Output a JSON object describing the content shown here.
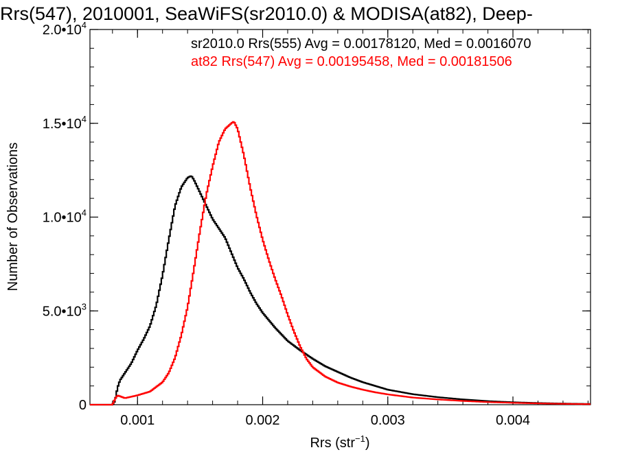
{
  "chart_data": {
    "type": "line",
    "title": "Rrs(547), 2010001, SeaWiFS(sr2010.0) & MODISA(at82), Deep-",
    "xlabel": {
      "base": "Rrs (str",
      "sup": "−1",
      "close": ")"
    },
    "ylabel": "Number of Observations",
    "xlim": [
      0.00062,
      0.00462
    ],
    "ylim": [
      0,
      20000
    ],
    "x_ticks": [
      {
        "value": 0.001,
        "label": "0.001"
      },
      {
        "value": 0.002,
        "label": "0.002"
      },
      {
        "value": 0.003,
        "label": "0.003"
      },
      {
        "value": 0.004,
        "label": "0.004"
      }
    ],
    "y_ticks": [
      {
        "value": 0,
        "mantissa": "0",
        "exp": ""
      },
      {
        "value": 5000,
        "mantissa": "5.0•10",
        "exp": "3"
      },
      {
        "value": 10000,
        "mantissa": "1.0•10",
        "exp": "4"
      },
      {
        "value": 15000,
        "mantissa": "1.5•10",
        "exp": "4"
      },
      {
        "value": 20000,
        "mantissa": "2.0•10",
        "exp": "4"
      }
    ],
    "annotations": [
      {
        "text": "sr2010.0 Rrs(555) Avg = 0.00178120, Med = 0.0016070",
        "color": "#000000"
      },
      {
        "text": "at82 Rrs(547) Avg = 0.00195458, Med = 0.00181506",
        "color": "#ff0000"
      }
    ],
    "series": [
      {
        "color": "#000000",
        "x": [
          0.0006,
          0.0007,
          0.0008,
          0.00082,
          0.00084,
          0.00086,
          0.0009,
          0.00095,
          0.001,
          0.00105,
          0.0011,
          0.00115,
          0.0012,
          0.00125,
          0.0013,
          0.00135,
          0.0014,
          0.00143,
          0.00145,
          0.0015,
          0.00155,
          0.0016,
          0.00165,
          0.0017,
          0.00175,
          0.0018,
          0.00185,
          0.0019,
          0.00195,
          0.002,
          0.0021,
          0.0022,
          0.0023,
          0.0024,
          0.0025,
          0.0026,
          0.0027,
          0.0028,
          0.0029,
          0.003,
          0.0032,
          0.0034,
          0.0036,
          0.0038,
          0.004,
          0.0042,
          0.0044,
          0.0046
        ],
        "y": [
          0,
          0,
          0,
          200,
          900,
          1300,
          1700,
          2200,
          2900,
          3500,
          4200,
          5300,
          6900,
          8800,
          10600,
          11600,
          12100,
          12200,
          12000,
          11300,
          10600,
          9900,
          9400,
          8900,
          8100,
          7300,
          6700,
          6000,
          5400,
          4900,
          4100,
          3400,
          2900,
          2450,
          2050,
          1750,
          1450,
          1200,
          1000,
          800,
          560,
          400,
          280,
          190,
          130,
          90,
          60,
          40
        ]
      },
      {
        "color": "#ff0000",
        "x": [
          0.0006,
          0.0007,
          0.0008,
          0.00082,
          0.00084,
          0.0009,
          0.001,
          0.0011,
          0.0012,
          0.00125,
          0.0013,
          0.00135,
          0.0014,
          0.00145,
          0.0015,
          0.00155,
          0.0016,
          0.00165,
          0.0017,
          0.00175,
          0.00177,
          0.0018,
          0.00185,
          0.0019,
          0.00195,
          0.002,
          0.00205,
          0.0021,
          0.00215,
          0.0022,
          0.00225,
          0.0023,
          0.00235,
          0.0024,
          0.0025,
          0.0026,
          0.0027,
          0.0028,
          0.0029,
          0.003,
          0.0032,
          0.0034,
          0.0036,
          0.0038,
          0.004,
          0.0042,
          0.0044,
          0.0046
        ],
        "y": [
          0,
          0,
          0,
          300,
          500,
          350,
          500,
          700,
          1200,
          1700,
          2500,
          3700,
          5200,
          7200,
          9300,
          11200,
          12700,
          14000,
          14700,
          15000,
          15100,
          14700,
          13300,
          11600,
          10100,
          8800,
          7700,
          6700,
          5800,
          4800,
          3900,
          3100,
          2450,
          2000,
          1500,
          1180,
          970,
          800,
          660,
          550,
          380,
          280,
          200,
          140,
          100,
          70,
          45,
          30
        ]
      }
    ]
  }
}
